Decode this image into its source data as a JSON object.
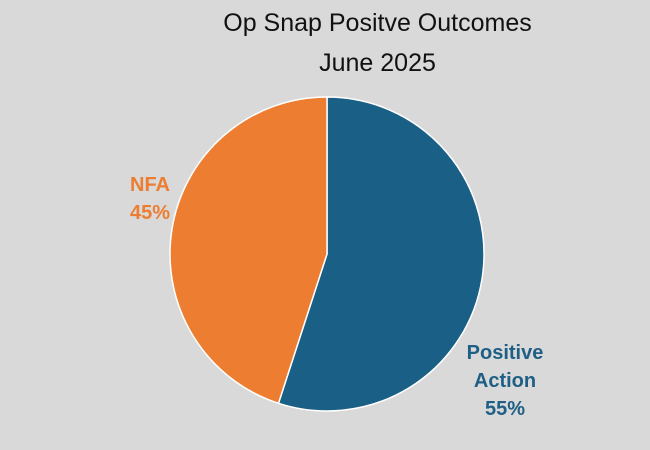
{
  "chart_data": {
    "type": "pie",
    "title": "Op Snap Positve Outcomes",
    "subtitle": "June 2025",
    "categories": [
      "Positive Action",
      "NFA"
    ],
    "values": [
      55,
      45
    ],
    "value_labels": [
      "55%",
      "45%"
    ],
    "colors": [
      "#1a5f86",
      "#ed7d31"
    ],
    "label_lines": {
      "positive_action": [
        "Positive",
        "Action",
        "55%"
      ],
      "nfa": [
        "NFA",
        "45%"
      ]
    },
    "legend": false
  }
}
